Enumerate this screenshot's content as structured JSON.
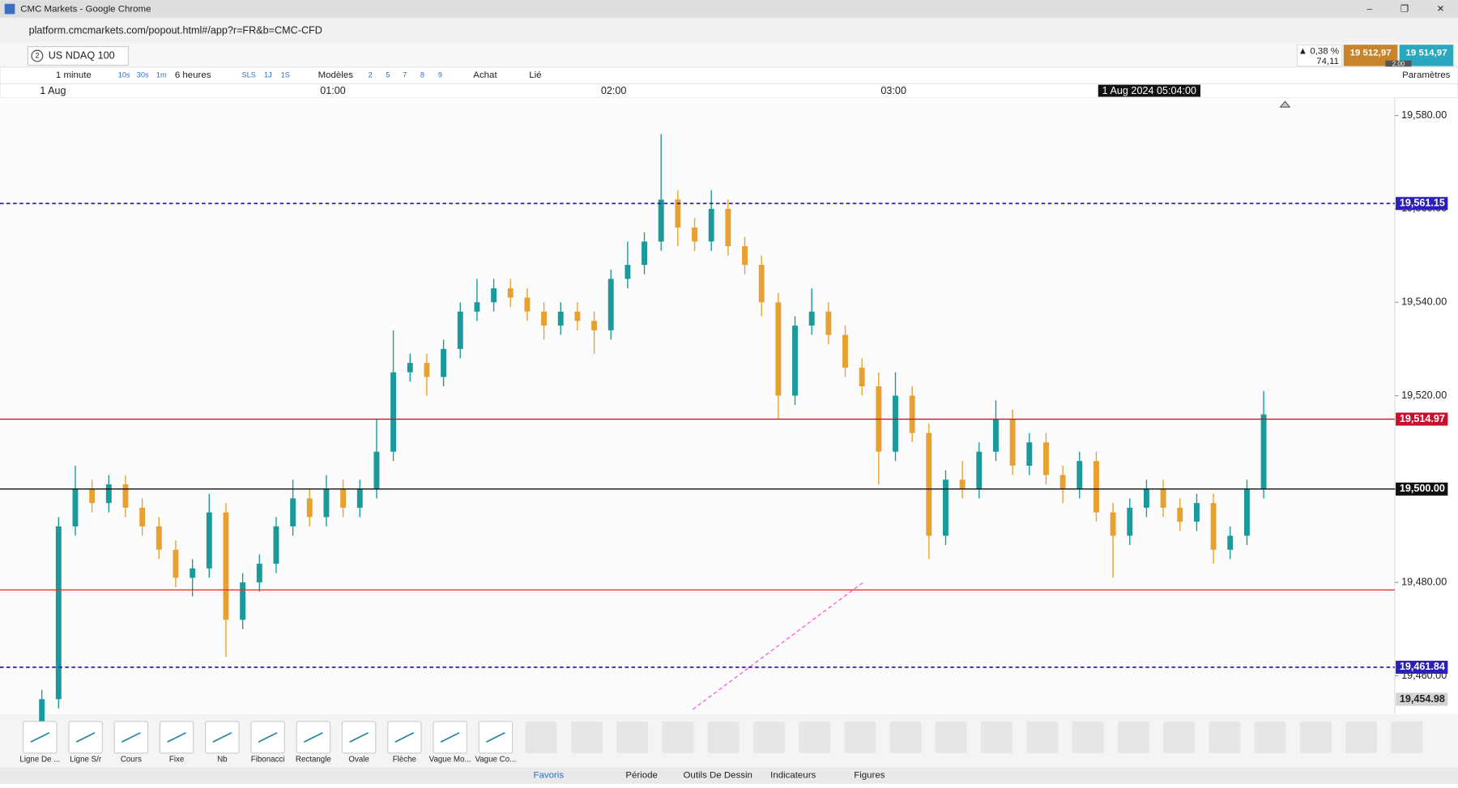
{
  "window": {
    "title": "CMC Markets - Google Chrome",
    "url": "platform.cmcmarkets.com/popout.html#/app?r=FR&b=CMC-CFD"
  },
  "instrument": {
    "tab_number": "2",
    "name": "US NDAQ 100",
    "change_pct": "▲ 0,38 %",
    "change": "74,11",
    "sell": "19 512,97",
    "buy": "19 514,97",
    "spread": "2,00"
  },
  "toolbar": [
    "1 minute",
    "10s",
    "30s",
    "1m",
    "6 heures",
    "SLS",
    "1J",
    "1S",
    "Modèles",
    "2",
    "5",
    "7",
    "8",
    "9",
    "Achat",
    "Lié",
    "Paramètres"
  ],
  "chart_data": {
    "type": "candlestick",
    "x_labels": [
      "1 Aug",
      "01:00",
      "02:00",
      "03:00"
    ],
    "crosshair_label": "1 Aug 2024 05:04:00",
    "ylim": [
      19451.8,
      19583.8
    ],
    "yticks": [
      {
        "value": 19580,
        "label": "19,580.00"
      },
      {
        "value": 19560,
        "label": "19,560.00"
      },
      {
        "value": 19540,
        "label": "19,540.00"
      },
      {
        "value": 19520,
        "label": "19,520.00"
      },
      {
        "value": 19500,
        "label": "19,500.00"
      },
      {
        "value": 19480,
        "label": "19,480.00"
      },
      {
        "value": 19460,
        "label": "19,460.00"
      }
    ],
    "up_color": "#1a9a9a",
    "down_color": "#e8a030",
    "open": [
      19448,
      19455,
      19492,
      19500,
      19497,
      19501,
      19496,
      19492,
      19487,
      19481,
      19483,
      19495,
      19472,
      19480,
      19484,
      19492,
      19498,
      19494,
      19500,
      19496,
      19500,
      19508,
      19525,
      19527,
      19524,
      19530,
      19538,
      19540,
      19543,
      19541,
      19538,
      19535,
      19538,
      19536,
      19534,
      19545,
      19548,
      19553,
      19562,
      19556,
      19553,
      19560,
      19552,
      19548,
      19540,
      19520,
      19535,
      19538,
      19533,
      19526,
      19522,
      19508,
      19520,
      19512,
      19490,
      19502,
      19500,
      19508,
      19515,
      19505,
      19510,
      19503,
      19500,
      19506,
      19495,
      19490,
      19496,
      19500,
      19496,
      19493,
      19497,
      19487,
      19490,
      19500
    ],
    "high": [
      19457,
      19494,
      19505,
      19502,
      19503,
      19503,
      19498,
      19494,
      19489,
      19485,
      19499,
      19497,
      19482,
      19486,
      19494,
      19502,
      19500,
      19503,
      19502,
      19502,
      19515,
      19534,
      19529,
      19529,
      19532,
      19540,
      19545,
      19545,
      19545,
      19543,
      19540,
      19540,
      19540,
      19538,
      19547,
      19553,
      19555,
      19576,
      19564,
      19558,
      19564,
      19562,
      19554,
      19550,
      19542,
      19537,
      19543,
      19540,
      19535,
      19528,
      19525,
      19525,
      19522,
      19514,
      19504,
      19506,
      19510,
      19519,
      19517,
      19512,
      19512,
      19505,
      19508,
      19508,
      19497,
      19498,
      19502,
      19502,
      19498,
      19499,
      19499,
      19492,
      19502,
      19521
    ],
    "low": [
      19446,
      19453,
      19490,
      19495,
      19495,
      19494,
      19490,
      19485,
      19479,
      19477,
      19481,
      19464,
      19470,
      19478,
      19482,
      19490,
      19492,
      19492,
      19494,
      19494,
      19498,
      19506,
      19523,
      19520,
      19522,
      19528,
      19536,
      19538,
      19539,
      19536,
      19532,
      19533,
      19534,
      19529,
      19532,
      19543,
      19546,
      19551,
      19552,
      19551,
      19551,
      19550,
      19546,
      19537,
      19515,
      19518,
      19533,
      19531,
      19524,
      19520,
      19501,
      19506,
      19510,
      19485,
      19488,
      19498,
      19498,
      19506,
      19503,
      19503,
      19501,
      19497,
      19498,
      19493,
      19481,
      19488,
      19494,
      19494,
      19491,
      19491,
      19484,
      19485,
      19488,
      19498
    ],
    "close": [
      19455,
      19492,
      19500,
      19497,
      19501,
      19496,
      19492,
      19487,
      19481,
      19483,
      19495,
      19472,
      19480,
      19484,
      19492,
      19498,
      19494,
      19500,
      19496,
      19500,
      19508,
      19525,
      19527,
      19524,
      19530,
      19538,
      19540,
      19543,
      19541,
      19538,
      19535,
      19538,
      19536,
      19534,
      19545,
      19548,
      19553,
      19562,
      19556,
      19553,
      19560,
      19552,
      19548,
      19540,
      19520,
      19535,
      19538,
      19533,
      19526,
      19522,
      19508,
      19520,
      19512,
      19490,
      19502,
      19500,
      19508,
      19515,
      19505,
      19510,
      19503,
      19500,
      19506,
      19495,
      19490,
      19496,
      19500,
      19496,
      19493,
      19497,
      19487,
      19490,
      19500,
      19516
    ],
    "levels": [
      {
        "value": 19561.15,
        "label": "19,561.15",
        "color": "#2a1fb8",
        "style": "dashed"
      },
      {
        "value": 19514.97,
        "label": "19,514.97",
        "color": "#c8102e",
        "style": "solid"
      },
      {
        "value": 19500,
        "label": "19,500.00",
        "color": "#111111",
        "style": "solid"
      },
      {
        "value": 19478.4,
        "color": "#e03030",
        "style": "solid"
      },
      {
        "value": 19461.84,
        "label": "19,461.84",
        "color": "#2a1fb8",
        "style": "dashed"
      }
    ],
    "bottom_label": {
      "value": 19454.98,
      "label": "19,454.98"
    }
  },
  "tools": [
    "Ligne De ...",
    "Ligne S/r",
    "Cours",
    "Fixe",
    "Nb",
    "Fibonacci",
    "Rectangle",
    "Ovale",
    "Flèche",
    "Vague Mo...",
    "Vague Co..."
  ],
  "tabs": [
    "Favoris",
    "Période",
    "Outils De Dessin",
    "Indicateurs",
    "Figures"
  ]
}
